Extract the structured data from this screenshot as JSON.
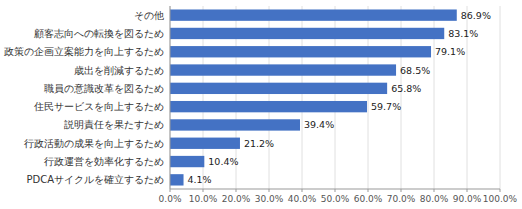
{
  "chart_data": {
    "type": "bar",
    "orientation": "horizontal",
    "categories": [
      "その他",
      "顧客志向への転換を図るため",
      "政策の企画立案能力を向上するため",
      "歳出を削減するため",
      "職員の意識改革を図るため",
      "住民サービスを向上するため",
      "説明責任を果たすため",
      "行政活動の成果を向上するため",
      "行政運営を効率化するため",
      "PDCAサイクルを確立するため"
    ],
    "values": [
      86.9,
      83.1,
      79.1,
      68.5,
      65.8,
      59.7,
      39.4,
      21.2,
      10.4,
      4.1
    ],
    "value_labels": [
      "86.9%",
      "83.1%",
      "79.1%",
      "68.5%",
      "65.8%",
      "59.7%",
      "39.4%",
      "21.2%",
      "10.4%",
      "4.1%"
    ],
    "data_labels": true,
    "color": "#4472C4",
    "xlim": [
      0,
      100
    ],
    "xticks": [
      {
        "value": 0,
        "label": "0.0%"
      },
      {
        "value": 10,
        "label": "10.0%"
      },
      {
        "value": 20,
        "label": "20.0%"
      },
      {
        "value": 30,
        "label": "30.0%"
      },
      {
        "value": 40,
        "label": "40.0%"
      },
      {
        "value": 50,
        "label": "50.0%"
      },
      {
        "value": 60,
        "label": "60.0%"
      },
      {
        "value": 70,
        "label": "70.0%"
      },
      {
        "value": 80,
        "label": "80.0%"
      },
      {
        "value": 90,
        "label": "90.0%"
      },
      {
        "value": 100,
        "label": "100.0%"
      }
    ],
    "grid": true
  }
}
